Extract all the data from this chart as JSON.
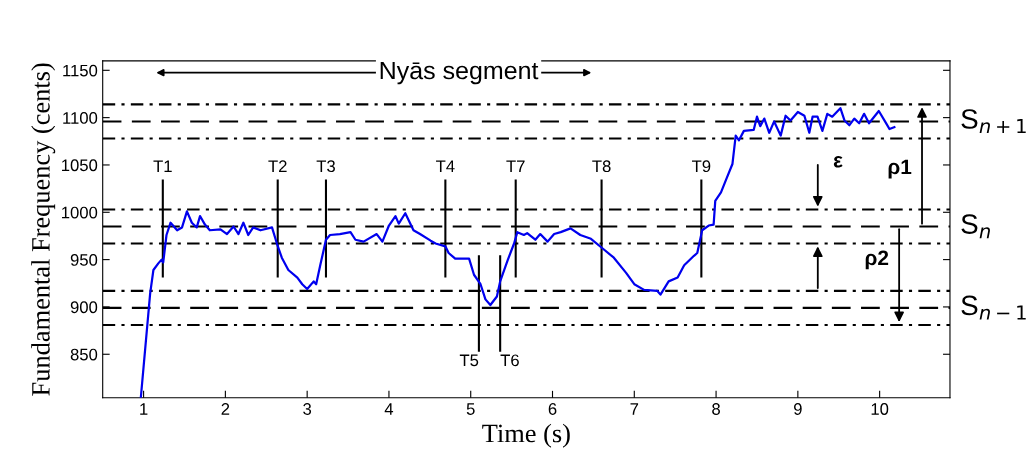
{
  "chart_data": {
    "type": "line",
    "xlabel": "Time (s)",
    "ylabel": "Fundamental Frequency (cents)",
    "xlim": [
      0.5,
      10.86
    ],
    "ylim": [
      804,
      1160
    ],
    "xticks": [
      1,
      2,
      3,
      4,
      5,
      6,
      7,
      8,
      9,
      10
    ],
    "yticks": [
      850,
      900,
      950,
      1000,
      1050,
      1100,
      1150
    ],
    "grid": false,
    "marker": "none",
    "line_style": "solid",
    "series": [
      {
        "color": "#0000ee",
        "x": [
          0.966,
          1.08,
          1.12,
          1.18,
          1.22,
          1.24,
          1.28,
          1.33,
          1.41,
          1.47,
          1.53,
          1.59,
          1.65,
          1.69,
          1.75,
          1.81,
          1.94,
          2.02,
          2.1,
          2.16,
          2.22,
          2.28,
          2.34,
          2.43,
          2.57,
          2.63,
          2.69,
          2.77,
          2.88,
          2.94,
          3.0,
          3.08,
          3.11,
          3.16,
          3.23,
          3.28,
          3.4,
          3.53,
          3.59,
          3.69,
          3.85,
          3.92,
          4.0,
          4.08,
          4.12,
          4.2,
          4.3,
          4.38,
          4.51,
          4.57,
          4.69,
          4.73,
          4.81,
          4.98,
          5.04,
          5.12,
          5.18,
          5.24,
          5.32,
          5.36,
          5.45,
          5.53,
          5.57,
          5.65,
          5.69,
          5.79,
          5.85,
          5.94,
          6.02,
          6.1,
          6.22,
          6.34,
          6.47,
          6.61,
          6.75,
          6.9,
          7.0,
          7.12,
          7.28,
          7.32,
          7.42,
          7.53,
          7.61,
          7.73,
          7.77,
          7.83,
          7.91,
          7.97,
          7.99,
          8.06,
          8.12,
          8.2,
          8.24,
          8.28,
          8.34,
          8.46,
          8.5,
          8.54,
          8.59,
          8.65,
          8.71,
          8.79,
          8.85,
          8.91,
          9.0,
          9.08,
          9.14,
          9.18,
          9.24,
          9.3,
          9.36,
          9.42,
          9.52,
          9.57,
          9.63,
          9.69,
          9.75,
          9.81,
          9.87,
          9.99,
          10.08,
          10.12,
          10.18
        ],
        "values": [
          804,
          914,
          939,
          946,
          950,
          947,
          976,
          989,
          981,
          984,
          1001,
          989,
          984,
          996,
          987,
          981,
          982,
          977,
          985,
          977,
          989,
          976,
          984,
          981,
          984,
          967,
          952,
          939,
          931,
          924,
          919,
          927,
          924,
          944,
          971,
          976,
          977,
          979,
          971,
          969,
          977,
          969,
          986,
          996,
          988,
          999,
          981,
          977,
          970,
          967,
          964,
          957,
          951,
          951,
          934,
          924,
          908,
          902,
          911,
          927,
          949,
          967,
          979,
          976,
          978,
          971,
          977,
          969,
          977,
          979,
          983,
          976,
          972,
          962,
          952,
          936,
          924,
          918,
          917,
          913,
          927,
          931,
          944,
          954,
          957,
          981,
          986,
          987,
          1012,
          1021,
          1034,
          1051,
          1081,
          1076,
          1086,
          1087,
          1101,
          1091,
          1099,
          1084,
          1096,
          1081,
          1102,
          1097,
          1106,
          1102,
          1084,
          1101,
          1101,
          1086,
          1104,
          1101,
          1110,
          1097,
          1092,
          1099,
          1094,
          1104,
          1094,
          1107,
          1094,
          1088,
          1090
        ]
      }
    ],
    "ref_lines": [
      {
        "axis": "y",
        "value": 1114,
        "color": "#000000",
        "line_style": "dashdot"
      },
      {
        "axis": "y",
        "value": 1096,
        "color": "#000000",
        "line_style": "dashed",
        "label": "S$_{n+1}$"
      },
      {
        "axis": "y",
        "value": 1078,
        "color": "#000000",
        "line_style": "dashdot"
      },
      {
        "axis": "y",
        "value": 1003,
        "color": "#000000",
        "line_style": "dashdot"
      },
      {
        "axis": "y",
        "value": 985,
        "color": "#000000",
        "line_style": "dashed",
        "label": "S$_{n}$"
      },
      {
        "axis": "y",
        "value": 967,
        "color": "#000000",
        "line_style": "dashdot"
      },
      {
        "axis": "y",
        "value": 917,
        "color": "#000000",
        "line_style": "dashdot"
      },
      {
        "axis": "y",
        "value": 899,
        "color": "#000000",
        "line_style": "dashed",
        "label": "S$_{n−1}$"
      },
      {
        "axis": "y",
        "value": 881,
        "color": "#000000",
        "line_style": "dashdot"
      },
      {
        "axis": "x",
        "value": 1.235,
        "label": "T1",
        "color": "#000000",
        "line_style": "solid"
      },
      {
        "axis": "x",
        "value": 2.64,
        "label": "T2",
        "color": "#000000",
        "line_style": "solid"
      },
      {
        "axis": "x",
        "value": 3.23,
        "label": "T3",
        "color": "#000000",
        "line_style": "solid"
      },
      {
        "axis": "x",
        "value": 4.69,
        "label": "T4",
        "color": "#000000",
        "line_style": "solid"
      },
      {
        "axis": "x",
        "value": 5.1,
        "label": "T5",
        "color": "#000000",
        "line_style": "solid"
      },
      {
        "axis": "x",
        "value": 5.36,
        "label": "T6",
        "color": "#000000",
        "line_style": "solid"
      },
      {
        "axis": "x",
        "value": 5.55,
        "label": "T7",
        "color": "#000000",
        "line_style": "solid"
      },
      {
        "axis": "x",
        "value": 6.6,
        "label": "T8",
        "color": "#000000",
        "line_style": "solid"
      },
      {
        "axis": "x",
        "value": 7.82,
        "label": "T9",
        "color": "#000000",
        "line_style": "solid"
      }
    ],
    "annotations": [
      "Nyās segment",
      "ε",
      "ρ1",
      "ρ2"
    ]
  }
}
